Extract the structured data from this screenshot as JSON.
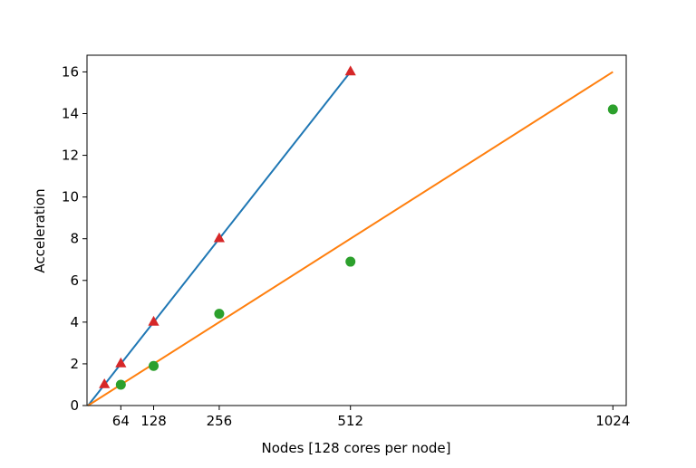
{
  "chart_data": {
    "type": "scatter",
    "title": "",
    "xlabel": "Nodes [128 cores per node]",
    "ylabel": "Acceleration",
    "xlim": [
      -2,
      1050
    ],
    "ylim": [
      0,
      16.8
    ],
    "xticks": [
      64,
      128,
      256,
      512,
      1024
    ],
    "yticks": [
      0,
      2,
      4,
      6,
      8,
      10,
      12,
      14,
      16
    ],
    "grid": false,
    "legend": "none",
    "series": [
      {
        "kind": "line",
        "color": "#1f77b4",
        "x": [
          0,
          512
        ],
        "y": [
          0,
          16
        ]
      },
      {
        "kind": "line",
        "color": "#ff7f0e",
        "x": [
          0,
          1024
        ],
        "y": [
          0,
          16
        ]
      },
      {
        "kind": "scatter",
        "marker": "triangle",
        "color": "#d62728",
        "x": [
          32,
          64,
          128,
          256,
          512
        ],
        "y": [
          1,
          2,
          4,
          8,
          16
        ]
      },
      {
        "kind": "scatter",
        "marker": "circle",
        "color": "#2ca02c",
        "x": [
          64,
          128,
          256,
          512,
          1024
        ],
        "y": [
          1,
          1.9,
          4.4,
          6.9,
          14.2
        ]
      }
    ]
  }
}
